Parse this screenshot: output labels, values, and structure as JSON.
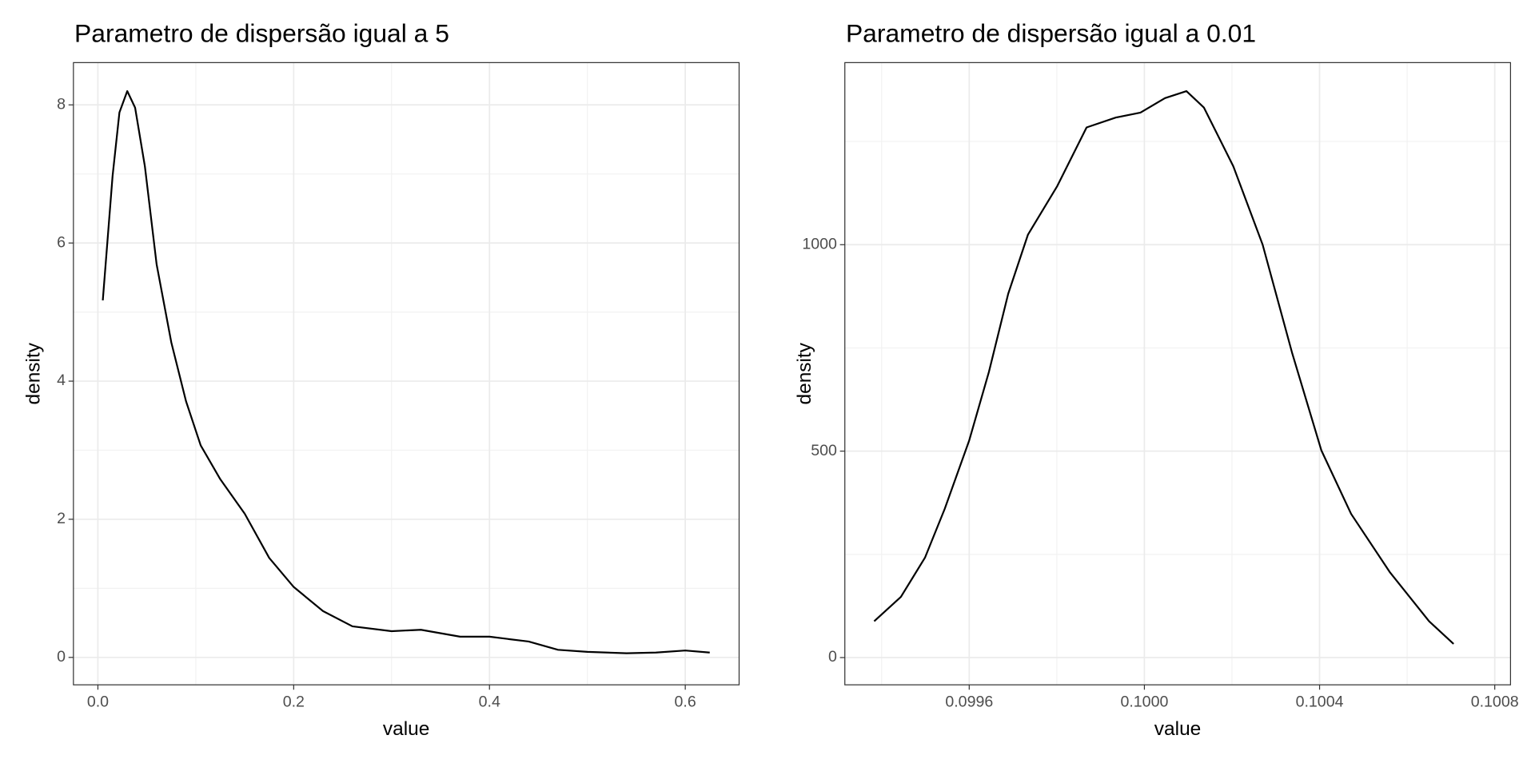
{
  "chart_data": [
    {
      "type": "line",
      "title": "Parametro de dispersão igual a 5",
      "x_label": "value",
      "y_label": "density",
      "x": [
        0.005,
        0.015,
        0.022,
        0.03,
        0.038,
        0.048,
        0.06,
        0.075,
        0.09,
        0.105,
        0.125,
        0.15,
        0.175,
        0.2,
        0.23,
        0.26,
        0.3,
        0.33,
        0.37,
        0.4,
        0.44,
        0.47,
        0.5,
        0.54,
        0.57,
        0.6,
        0.625
      ],
      "values": [
        5.17,
        6.97,
        7.89,
        8.2,
        7.96,
        7.11,
        5.69,
        4.56,
        3.71,
        3.07,
        2.58,
        2.08,
        1.44,
        1.02,
        0.67,
        0.45,
        0.38,
        0.4,
        0.3,
        0.3,
        0.23,
        0.11,
        0.08,
        0.06,
        0.07,
        0.1,
        0.07
      ],
      "color": "#000000",
      "xlim": [
        -0.025,
        0.655
      ],
      "xticks": [
        {
          "value": 0,
          "label": "0.0"
        },
        0.2,
        0.4,
        0.6
      ],
      "ylim": [
        -0.397,
        8.612
      ],
      "yticks": [
        0,
        2,
        4,
        6,
        8
      ],
      "grid": true
    },
    {
      "type": "line",
      "title": "Parametro de dispersão igual a 0.01",
      "x_label": "value",
      "y_label": "density",
      "x": [
        0.099383,
        0.099444,
        0.099499,
        0.099544,
        0.0996,
        0.099645,
        0.099689,
        0.099734,
        0.099801,
        0.099868,
        0.099935,
        0.099991,
        0.100047,
        0.100096,
        0.100136,
        0.100203,
        0.10027,
        0.100337,
        0.100404,
        0.100472,
        0.100561,
        0.10065,
        0.100706
      ],
      "values": [
        88,
        147,
        242,
        360,
        526,
        692,
        881,
        1024,
        1142,
        1284,
        1308,
        1320,
        1355,
        1372,
        1332,
        1190,
        1000,
        739,
        502,
        348,
        206,
        88,
        33
      ],
      "color": "#000000",
      "xlim": [
        0.099316,
        0.100836
      ],
      "xticks": [
        0.0996,
        {
          "value": 0.1,
          "label": "0.1000"
        },
        0.1004,
        0.1008
      ],
      "ylim": [
        -66,
        1441
      ],
      "yticks": [
        0,
        500,
        1000
      ],
      "grid": true
    }
  ]
}
